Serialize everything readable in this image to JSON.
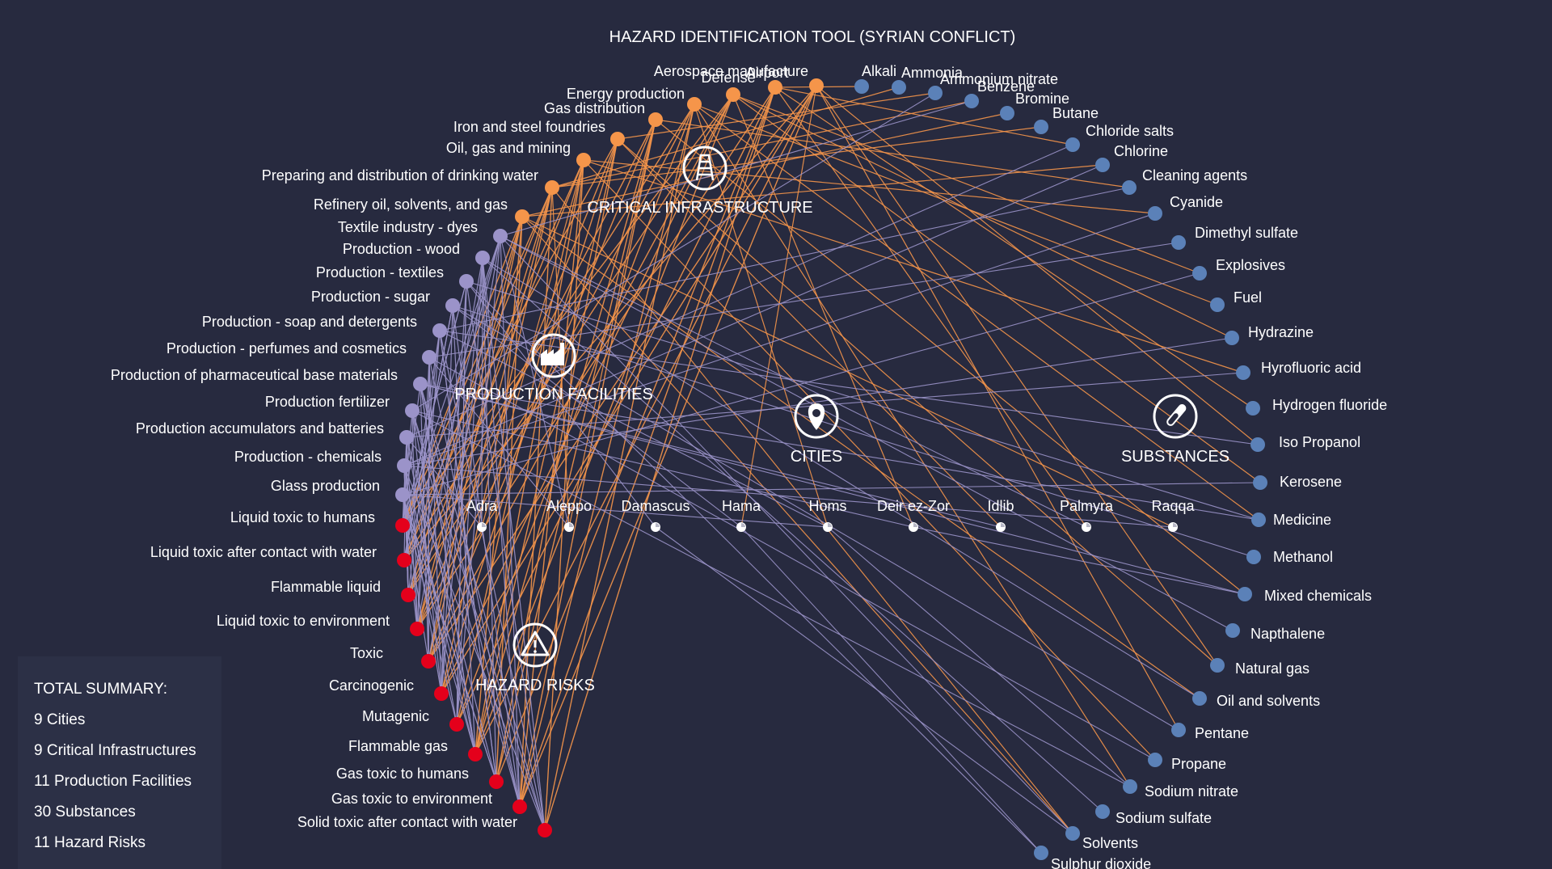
{
  "title": "HAZARD IDENTIFICATION TOOL (SYRIAN CONFLICT)",
  "colors": {
    "background": "#272a3f",
    "critical_infrastructure": "#f5954a",
    "production_facilities": "#9b93c9",
    "cities": "#ffffff",
    "substances": "#5b81b8",
    "hazard_risks": "#e4001b",
    "link_infrastructure": "#f5954a",
    "link_production": "#9b93c9"
  },
  "groups": {
    "critical_infrastructure": {
      "label": "CRITICAL INFRASTRUCTURE",
      "icon": "oil-rig-icon"
    },
    "production_facilities": {
      "label": "PRODUCTION FACILITIES",
      "icon": "factory-icon"
    },
    "cities": {
      "label": "CITIES",
      "icon": "map-pin-icon"
    },
    "substances": {
      "label": "SUBSTANCES",
      "icon": "test-tube-icon"
    },
    "hazard_risks": {
      "label": "HAZARD RISKS",
      "icon": "warning-triangle-icon"
    }
  },
  "nodes": {
    "critical_infrastructure": [
      "Refinery oil, solvents, and gas",
      "Preparing and distribution of drinking water",
      "Oil, gas and mining",
      "Iron and steel foundries",
      "Gas distribution",
      "Energy production",
      "Defense",
      "Airport",
      "Aerospace manufacture"
    ],
    "production_facilities": [
      "Textile industry - dyes",
      "Production - wood",
      "Production - textiles",
      "Production - sugar",
      "Production - soap and detergents",
      "Production - perfumes and cosmetics",
      "Production of pharmaceutical base materials",
      "Production fertilizer",
      "Production accumulators and batteries",
      "Production - chemicals",
      "Glass production"
    ],
    "hazard_risks": [
      "Liquid toxic to humans",
      "Liquid toxic after contact with water",
      "Flammable liquid",
      "Liquid toxic to environment",
      "Toxic",
      "Carcinogenic",
      "Mutagenic",
      "Flammable gas",
      "Gas toxic to humans",
      "Gas toxic to environment",
      "Solid toxic after contact with water"
    ],
    "cities": [
      "Adra",
      "Aleppo",
      "Damascus",
      "Hama",
      "Homs",
      "Deir ez-Zor",
      "Idlib",
      "Palmyra",
      "Raqqa"
    ],
    "substances": [
      "Alkali",
      "Ammonia",
      "Ammonium nitrate",
      "Benzene",
      "Bromine",
      "Butane",
      "Chloride salts",
      "Chlorine",
      "Cleaning agents",
      "Cyanide",
      "Dimethyl sulfate",
      "Explosives",
      "Fuel",
      "Hydrazine",
      "Hyrofluoric acid",
      "Hydrogen fluoride",
      "Iso Propanol",
      "Kerosene",
      "Medicine",
      "Methanol",
      "Mixed chemicals",
      "Napthalene",
      "Natural gas",
      "Oil and solvents",
      "Pentane",
      "Propane",
      "Sodium nitrate",
      "Sodium sulfate",
      "Solvents",
      "Sulphur dioxide"
    ]
  },
  "summary": {
    "heading": "TOTAL SUMMARY:",
    "cities": "9 Cities",
    "critical_infrastructures": "9 Critical Infrastructures",
    "production_facilities": "11 Production Facilities",
    "substances": "30 Substances",
    "hazard_risks": "11 Hazard Risks"
  }
}
